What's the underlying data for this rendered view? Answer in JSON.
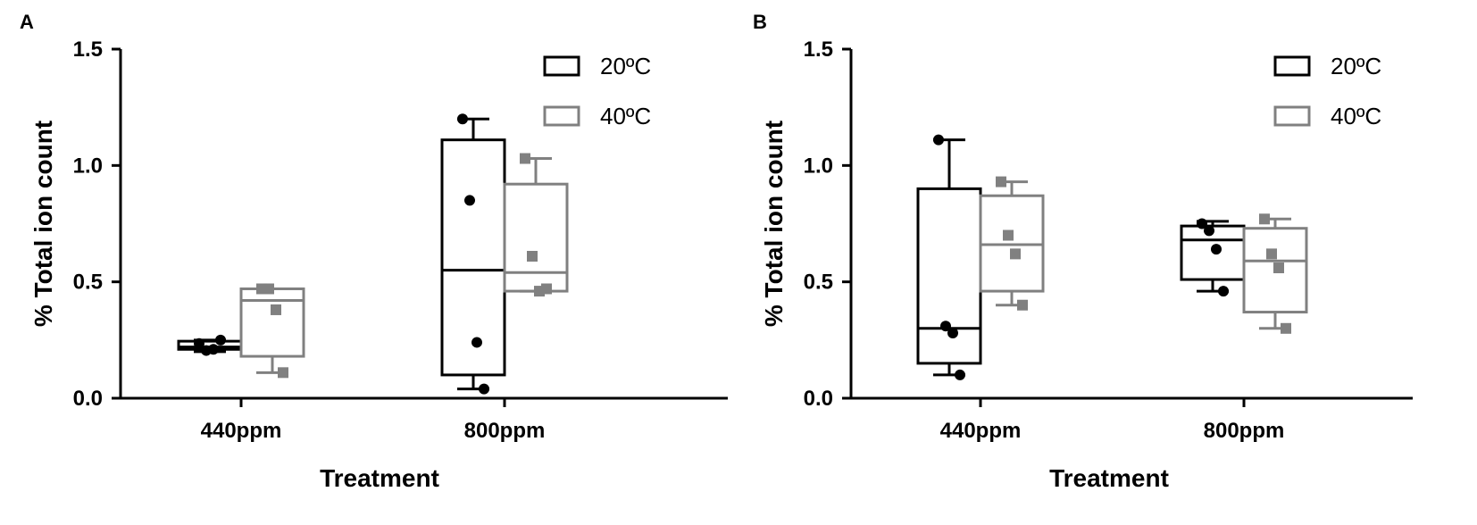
{
  "chart_data": [
    {
      "panel": "A",
      "type": "box",
      "xlabel": "Treatment",
      "ylabel": "% Total ion count",
      "ylim": [
        0,
        1.5
      ],
      "yticks": [
        "0.0",
        "0.5",
        "1.0",
        "1.5"
      ],
      "categories": [
        "440ppm",
        "800ppm"
      ],
      "legend": {
        "position": "top-right",
        "entries": [
          "20ºC",
          "40ºC"
        ]
      },
      "series": [
        {
          "name": "20ºC",
          "color": "#000000",
          "marker": "circle",
          "boxes": [
            {
              "min": 0.2,
              "q1": 0.21,
              "median": 0.22,
              "q3": 0.245,
              "max": 0.25,
              "points": [
                0.235,
                0.205,
                0.21,
                0.25
              ]
            },
            {
              "min": 0.04,
              "q1": 0.1,
              "median": 0.55,
              "q3": 1.11,
              "max": 1.2,
              "points": [
                1.2,
                0.85,
                0.24,
                0.04
              ]
            }
          ]
        },
        {
          "name": "40ºC",
          "color": "#808080",
          "marker": "square",
          "boxes": [
            {
              "min": 0.11,
              "q1": 0.18,
              "median": 0.42,
              "q3": 0.47,
              "max": 0.47,
              "points": [
                0.47,
                0.47,
                0.38,
                0.11
              ]
            },
            {
              "min": 0.46,
              "q1": 0.46,
              "median": 0.54,
              "q3": 0.92,
              "max": 1.03,
              "points": [
                1.03,
                0.61,
                0.46,
                0.47
              ]
            }
          ]
        }
      ]
    },
    {
      "panel": "B",
      "type": "box",
      "xlabel": "Treatment",
      "ylabel": "% Total ion count",
      "ylim": [
        0,
        1.5
      ],
      "yticks": [
        "0.0",
        "0.5",
        "1.0",
        "1.5"
      ],
      "categories": [
        "440ppm",
        "800ppm"
      ],
      "legend": {
        "position": "top-right",
        "entries": [
          "20ºC",
          "40ºC"
        ]
      },
      "series": [
        {
          "name": "20ºC",
          "color": "#000000",
          "marker": "circle",
          "boxes": [
            {
              "min": 0.1,
              "q1": 0.15,
              "median": 0.3,
              "q3": 0.9,
              "max": 1.11,
              "points": [
                1.11,
                0.31,
                0.28,
                0.1
              ]
            },
            {
              "min": 0.46,
              "q1": 0.51,
              "median": 0.68,
              "q3": 0.74,
              "max": 0.76,
              "points": [
                0.75,
                0.72,
                0.64,
                0.46
              ]
            }
          ]
        },
        {
          "name": "40ºC",
          "color": "#808080",
          "marker": "square",
          "boxes": [
            {
              "min": 0.4,
              "q1": 0.46,
              "median": 0.66,
              "q3": 0.87,
              "max": 0.93,
              "points": [
                0.93,
                0.7,
                0.62,
                0.4
              ]
            },
            {
              "min": 0.3,
              "q1": 0.37,
              "median": 0.59,
              "q3": 0.73,
              "max": 0.77,
              "points": [
                0.77,
                0.62,
                0.56,
                0.3
              ]
            }
          ]
        }
      ]
    }
  ]
}
